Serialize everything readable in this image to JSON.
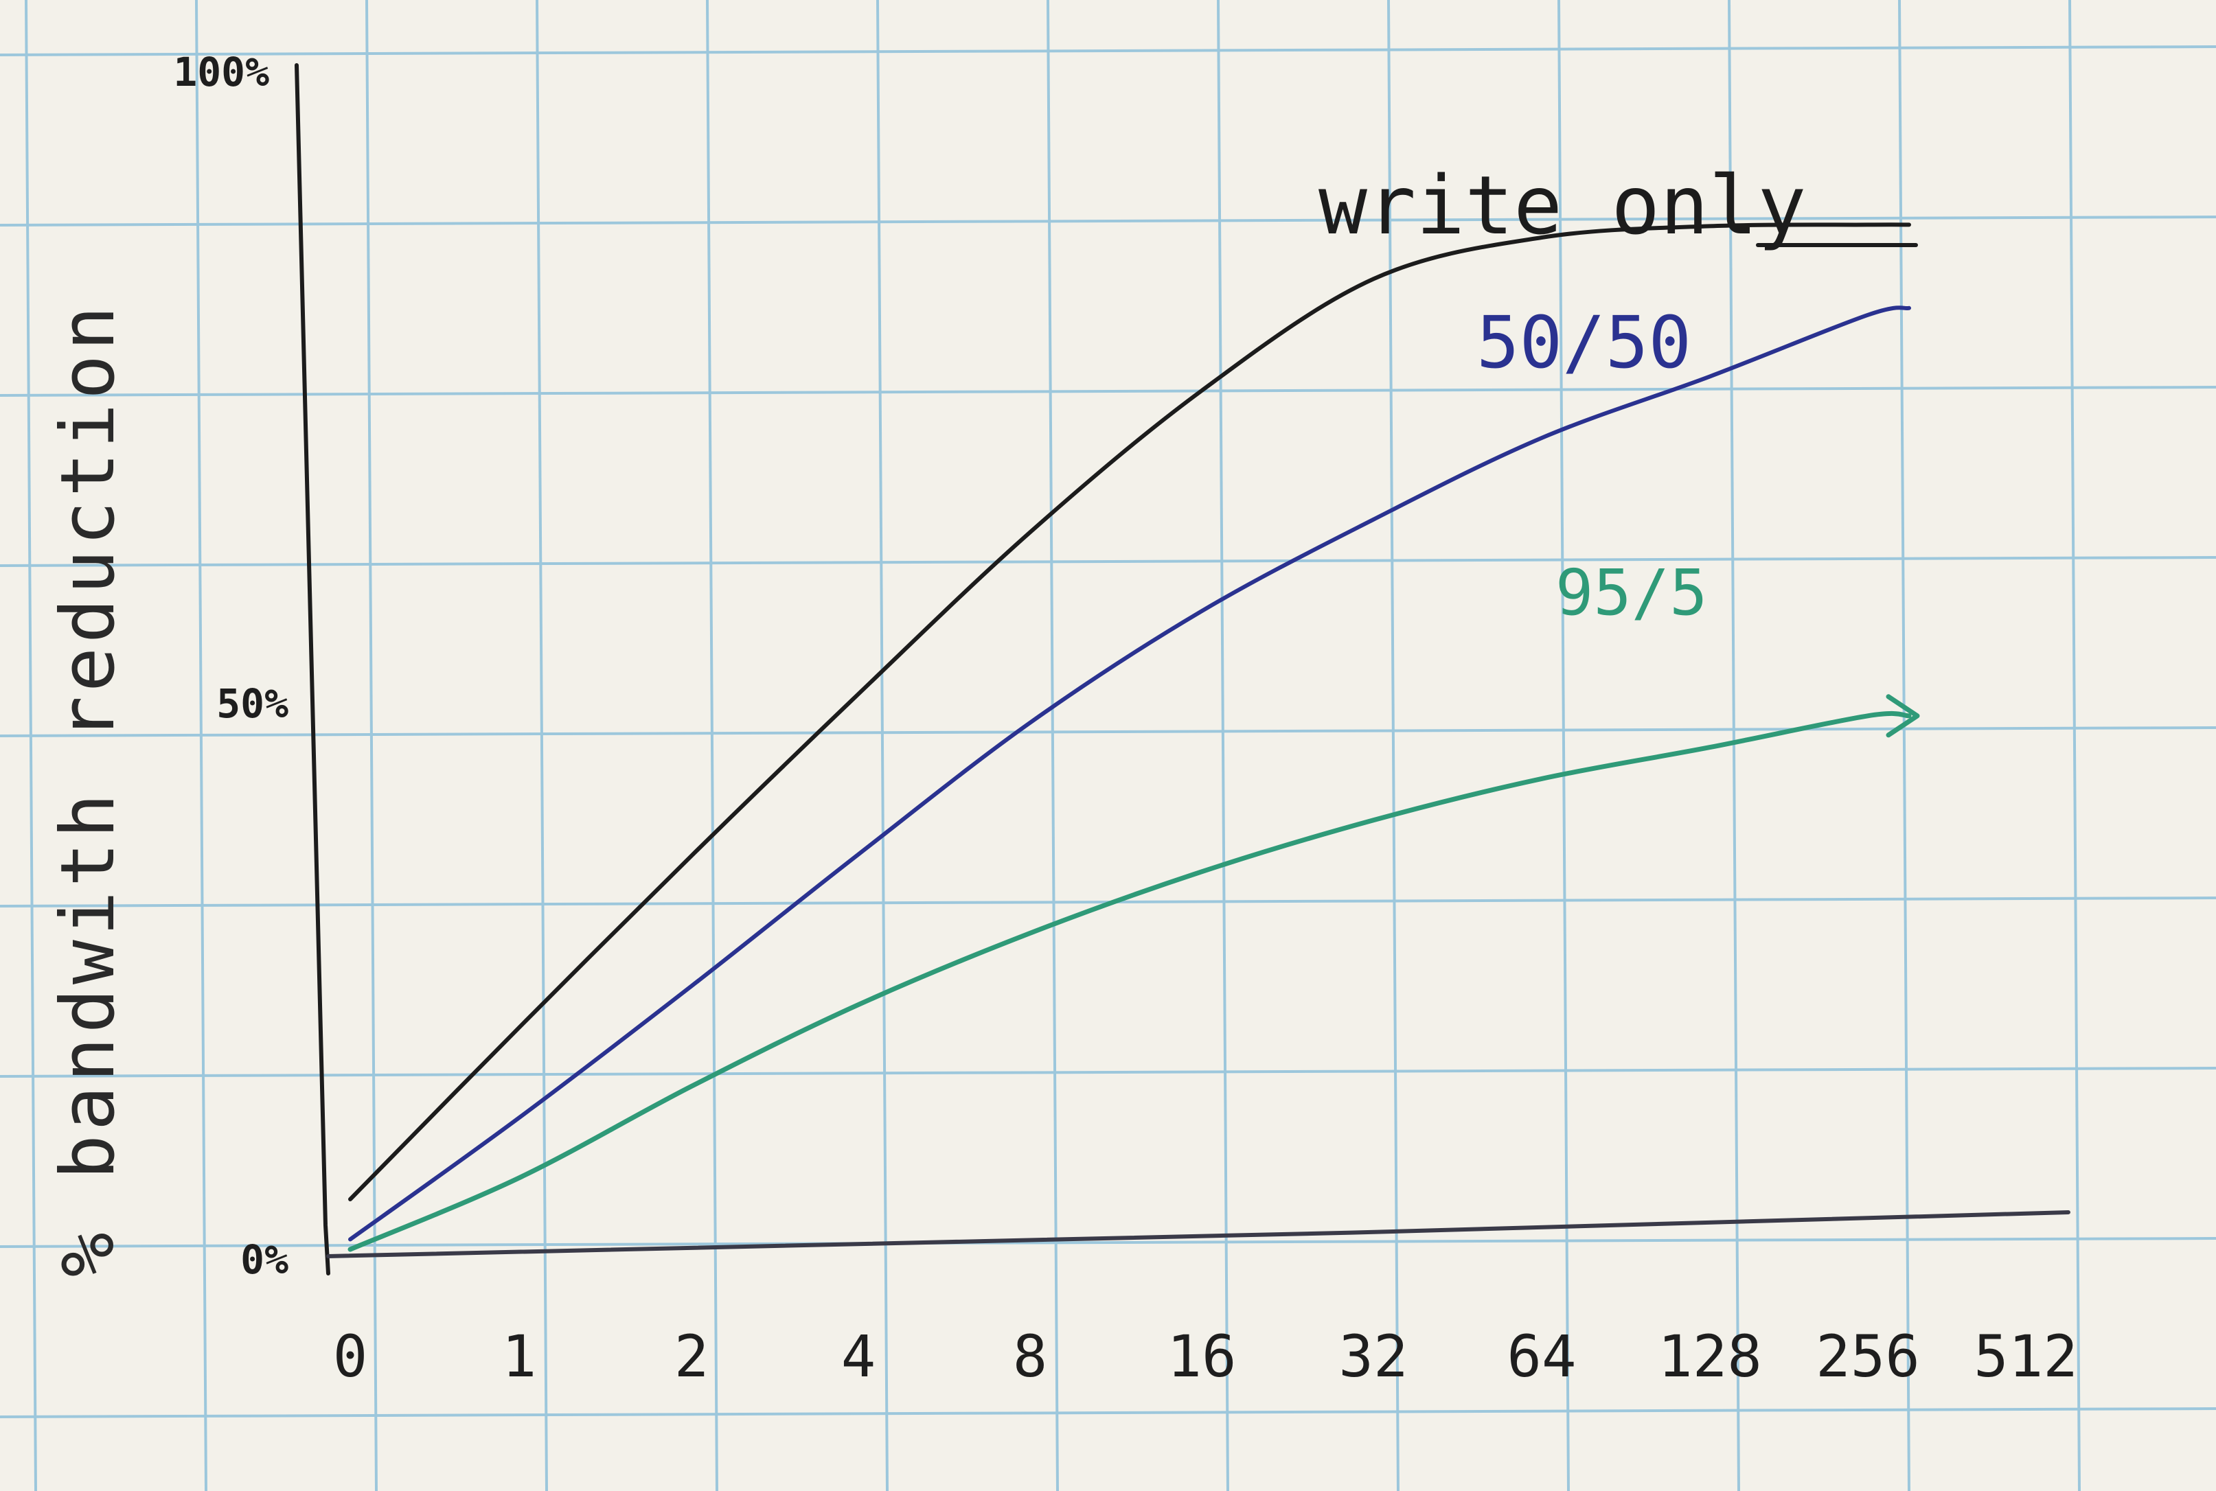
{
  "chart_data": {
    "type": "line",
    "title": "",
    "xlabel": "",
    "ylabel": "% bandwith reduction",
    "x_tick_labels": [
      "0",
      "1",
      "2",
      "4",
      "8",
      "16",
      "32",
      "64",
      "128",
      "256",
      "512"
    ],
    "y_tick_labels": [
      "0%",
      "50%",
      "100%"
    ],
    "ylim": [
      0,
      100
    ],
    "grid": true,
    "legend": "inline labels next to lines",
    "series": [
      {
        "name": "write only",
        "color": "#1c1c1c",
        "x": [
          0,
          1,
          2,
          4,
          8,
          16,
          32,
          64,
          128,
          256
        ],
        "y": [
          5,
          22,
          39,
          55,
          71,
          85,
          96,
          100,
          101,
          101
        ]
      },
      {
        "name": "50/50",
        "color": "#2a3290",
        "x": [
          0,
          1,
          2,
          4,
          8,
          16,
          32,
          64,
          128,
          256
        ],
        "y": [
          1,
          13,
          26,
          39,
          52,
          63,
          72,
          80,
          86,
          92
        ]
      },
      {
        "name": "95/5",
        "color": "#2f9a78",
        "x": [
          0,
          1,
          2,
          4,
          8,
          16,
          32,
          64,
          128,
          256
        ],
        "y": [
          0,
          7,
          16,
          24,
          31,
          37,
          42,
          46,
          49,
          52
        ]
      }
    ]
  }
}
